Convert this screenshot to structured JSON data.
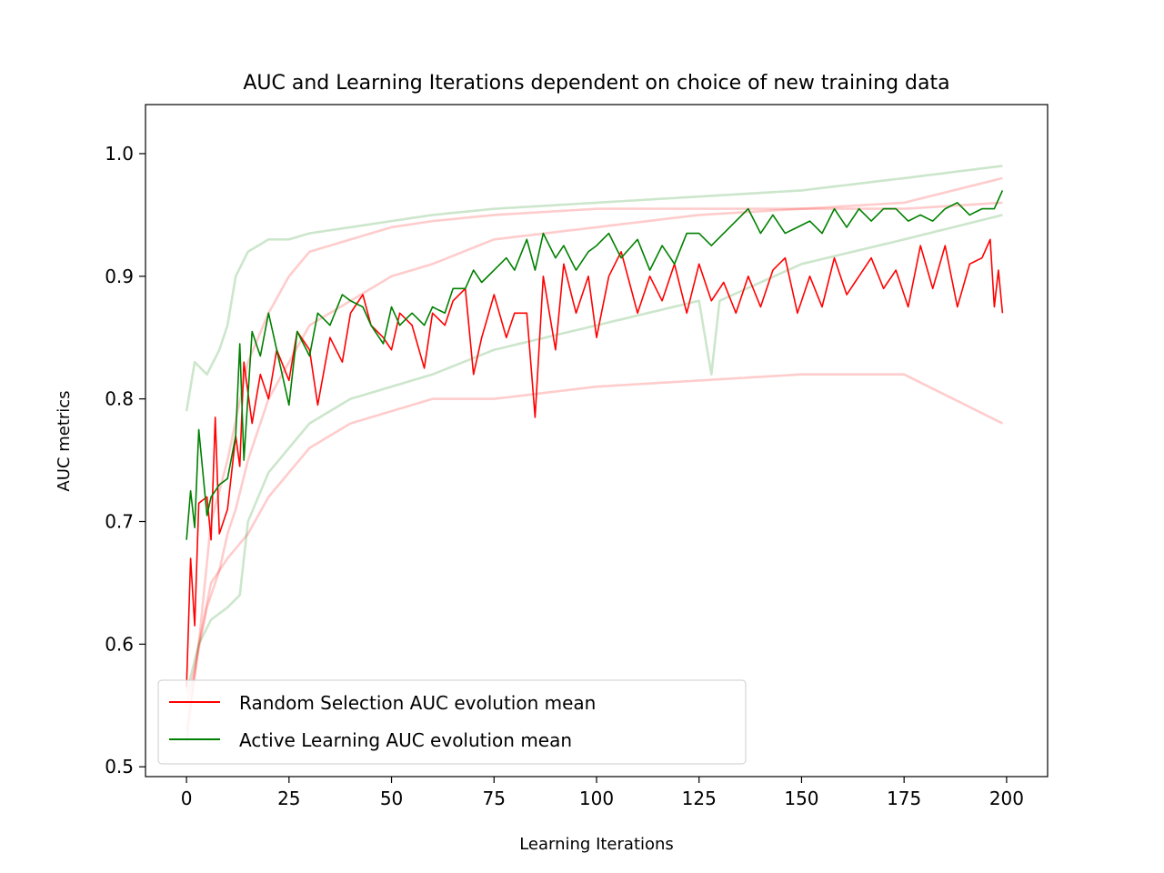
{
  "chart_data": {
    "type": "line",
    "title": "AUC and Learning Iterations dependent on choice of new training data",
    "xlabel": "Learning Iterations",
    "ylabel": "AUC metrics",
    "xlim": [
      -10,
      210
    ],
    "ylim": [
      0.492,
      1.04
    ],
    "x_ticks": [
      0,
      25,
      50,
      75,
      100,
      125,
      150,
      175,
      200
    ],
    "y_ticks": [
      0.5,
      0.6,
      0.7,
      0.8,
      0.9,
      1.0
    ],
    "x_tick_labels": [
      "0",
      "25",
      "50",
      "75",
      "100",
      "125",
      "150",
      "175",
      "200"
    ],
    "y_tick_labels": [
      "0.5",
      "0.6",
      "0.7",
      "0.8",
      "0.9",
      "1.0"
    ],
    "grid": false,
    "legend_position": "lower-left",
    "x_range": [
      0,
      199
    ],
    "series": [
      {
        "name": "Random Selection AUC evolution mean",
        "color": "#ff0000",
        "role": "mean",
        "keypoints": [
          [
            0,
            0.565
          ],
          [
            1,
            0.67
          ],
          [
            2,
            0.615
          ],
          [
            3,
            0.715
          ],
          [
            5,
            0.72
          ],
          [
            6,
            0.685
          ],
          [
            7,
            0.785
          ],
          [
            8,
            0.69
          ],
          [
            10,
            0.71
          ],
          [
            12,
            0.77
          ],
          [
            13,
            0.745
          ],
          [
            14,
            0.83
          ],
          [
            16,
            0.78
          ],
          [
            18,
            0.82
          ],
          [
            20,
            0.8
          ],
          [
            22,
            0.84
          ],
          [
            25,
            0.815
          ],
          [
            27,
            0.855
          ],
          [
            30,
            0.84
          ],
          [
            32,
            0.795
          ],
          [
            35,
            0.85
          ],
          [
            38,
            0.83
          ],
          [
            40,
            0.87
          ],
          [
            43,
            0.885
          ],
          [
            45,
            0.86
          ],
          [
            48,
            0.85
          ],
          [
            50,
            0.84
          ],
          [
            52,
            0.87
          ],
          [
            55,
            0.86
          ],
          [
            58,
            0.825
          ],
          [
            60,
            0.87
          ],
          [
            63,
            0.86
          ],
          [
            65,
            0.88
          ],
          [
            68,
            0.89
          ],
          [
            70,
            0.82
          ],
          [
            72,
            0.85
          ],
          [
            75,
            0.885
          ],
          [
            78,
            0.85
          ],
          [
            80,
            0.87
          ],
          [
            83,
            0.87
          ],
          [
            85,
            0.785
          ],
          [
            87,
            0.9
          ],
          [
            90,
            0.84
          ],
          [
            92,
            0.91
          ],
          [
            95,
            0.87
          ],
          [
            98,
            0.9
          ],
          [
            100,
            0.85
          ],
          [
            103,
            0.9
          ],
          [
            106,
            0.92
          ],
          [
            110,
            0.87
          ],
          [
            113,
            0.9
          ],
          [
            116,
            0.88
          ],
          [
            119,
            0.91
          ],
          [
            122,
            0.87
          ],
          [
            125,
            0.91
          ],
          [
            128,
            0.88
          ],
          [
            131,
            0.895
          ],
          [
            134,
            0.87
          ],
          [
            137,
            0.9
          ],
          [
            140,
            0.875
          ],
          [
            143,
            0.905
          ],
          [
            146,
            0.915
          ],
          [
            149,
            0.87
          ],
          [
            152,
            0.9
          ],
          [
            155,
            0.875
          ],
          [
            158,
            0.915
          ],
          [
            161,
            0.885
          ],
          [
            164,
            0.9
          ],
          [
            167,
            0.915
          ],
          [
            170,
            0.89
          ],
          [
            173,
            0.905
          ],
          [
            176,
            0.875
          ],
          [
            179,
            0.925
          ],
          [
            182,
            0.89
          ],
          [
            185,
            0.925
          ],
          [
            188,
            0.875
          ],
          [
            191,
            0.91
          ],
          [
            194,
            0.915
          ],
          [
            196,
            0.93
          ],
          [
            197,
            0.875
          ],
          [
            198,
            0.905
          ],
          [
            199,
            0.87
          ]
        ]
      },
      {
        "name": "Active Learning AUC evolution mean",
        "color": "#008000",
        "role": "mean",
        "keypoints": [
          [
            0,
            0.685
          ],
          [
            1,
            0.725
          ],
          [
            2,
            0.695
          ],
          [
            3,
            0.775
          ],
          [
            5,
            0.705
          ],
          [
            6,
            0.72
          ],
          [
            8,
            0.73
          ],
          [
            10,
            0.735
          ],
          [
            12,
            0.77
          ],
          [
            13,
            0.845
          ],
          [
            14,
            0.75
          ],
          [
            16,
            0.855
          ],
          [
            18,
            0.835
          ],
          [
            20,
            0.87
          ],
          [
            22,
            0.84
          ],
          [
            25,
            0.795
          ],
          [
            27,
            0.855
          ],
          [
            30,
            0.835
          ],
          [
            32,
            0.87
          ],
          [
            35,
            0.86
          ],
          [
            38,
            0.885
          ],
          [
            40,
            0.88
          ],
          [
            43,
            0.875
          ],
          [
            45,
            0.86
          ],
          [
            48,
            0.845
          ],
          [
            50,
            0.875
          ],
          [
            52,
            0.86
          ],
          [
            55,
            0.87
          ],
          [
            58,
            0.86
          ],
          [
            60,
            0.875
          ],
          [
            63,
            0.87
          ],
          [
            65,
            0.89
          ],
          [
            68,
            0.89
          ],
          [
            70,
            0.905
          ],
          [
            72,
            0.895
          ],
          [
            75,
            0.905
          ],
          [
            78,
            0.915
          ],
          [
            80,
            0.905
          ],
          [
            83,
            0.93
          ],
          [
            85,
            0.905
          ],
          [
            87,
            0.935
          ],
          [
            90,
            0.915
          ],
          [
            92,
            0.925
          ],
          [
            95,
            0.905
          ],
          [
            98,
            0.92
          ],
          [
            100,
            0.925
          ],
          [
            103,
            0.935
          ],
          [
            106,
            0.915
          ],
          [
            110,
            0.93
          ],
          [
            113,
            0.905
          ],
          [
            116,
            0.925
          ],
          [
            119,
            0.91
          ],
          [
            122,
            0.935
          ],
          [
            125,
            0.935
          ],
          [
            128,
            0.925
          ],
          [
            131,
            0.935
          ],
          [
            134,
            0.945
          ],
          [
            137,
            0.955
          ],
          [
            140,
            0.935
          ],
          [
            143,
            0.95
          ],
          [
            146,
            0.935
          ],
          [
            149,
            0.94
          ],
          [
            152,
            0.945
          ],
          [
            155,
            0.935
          ],
          [
            158,
            0.955
          ],
          [
            161,
            0.94
          ],
          [
            164,
            0.955
          ],
          [
            167,
            0.945
          ],
          [
            170,
            0.955
          ],
          [
            173,
            0.955
          ],
          [
            176,
            0.945
          ],
          [
            179,
            0.95
          ],
          [
            182,
            0.945
          ],
          [
            185,
            0.955
          ],
          [
            188,
            0.96
          ],
          [
            191,
            0.95
          ],
          [
            194,
            0.955
          ],
          [
            197,
            0.955
          ],
          [
            199,
            0.97
          ]
        ]
      },
      {
        "color": "#ff0000",
        "role": "run",
        "keypoints": [
          [
            0,
            0.55
          ],
          [
            2,
            0.58
          ],
          [
            5,
            0.63
          ],
          [
            8,
            0.66
          ],
          [
            10,
            0.69
          ],
          [
            12,
            0.71
          ],
          [
            15,
            0.75
          ],
          [
            20,
            0.8
          ],
          [
            25,
            0.83
          ],
          [
            30,
            0.86
          ],
          [
            40,
            0.88
          ],
          [
            50,
            0.9
          ],
          [
            60,
            0.91
          ],
          [
            75,
            0.93
          ],
          [
            100,
            0.94
          ],
          [
            125,
            0.95
          ],
          [
            150,
            0.955
          ],
          [
            175,
            0.96
          ],
          [
            199,
            0.98
          ]
        ]
      },
      {
        "color": "#ff0000",
        "role": "run",
        "keypoints": [
          [
            0,
            0.53
          ],
          [
            3,
            0.6
          ],
          [
            6,
            0.7
          ],
          [
            10,
            0.75
          ],
          [
            15,
            0.83
          ],
          [
            20,
            0.87
          ],
          [
            25,
            0.9
          ],
          [
            30,
            0.92
          ],
          [
            40,
            0.93
          ],
          [
            50,
            0.94
          ],
          [
            60,
            0.945
          ],
          [
            75,
            0.95
          ],
          [
            100,
            0.955
          ],
          [
            125,
            0.955
          ],
          [
            150,
            0.955
          ],
          [
            175,
            0.955
          ],
          [
            199,
            0.96
          ]
        ]
      },
      {
        "color": "#ff0000",
        "role": "run",
        "keypoints": [
          [
            0,
            0.52
          ],
          [
            3,
            0.6
          ],
          [
            6,
            0.65
          ],
          [
            10,
            0.67
          ],
          [
            15,
            0.69
          ],
          [
            20,
            0.72
          ],
          [
            25,
            0.74
          ],
          [
            30,
            0.76
          ],
          [
            40,
            0.78
          ],
          [
            50,
            0.79
          ],
          [
            60,
            0.8
          ],
          [
            75,
            0.8
          ],
          [
            100,
            0.81
          ],
          [
            125,
            0.815
          ],
          [
            150,
            0.82
          ],
          [
            175,
            0.82
          ],
          [
            199,
            0.78
          ]
        ]
      },
      {
        "color": "#008000",
        "role": "run",
        "keypoints": [
          [
            0,
            0.79
          ],
          [
            2,
            0.83
          ],
          [
            5,
            0.82
          ],
          [
            8,
            0.84
          ],
          [
            10,
            0.86
          ],
          [
            12,
            0.9
          ],
          [
            15,
            0.92
          ],
          [
            20,
            0.93
          ],
          [
            25,
            0.93
          ],
          [
            30,
            0.935
          ],
          [
            40,
            0.94
          ],
          [
            50,
            0.945
          ],
          [
            60,
            0.95
          ],
          [
            75,
            0.955
          ],
          [
            100,
            0.96
          ],
          [
            125,
            0.965
          ],
          [
            150,
            0.97
          ],
          [
            175,
            0.98
          ],
          [
            199,
            0.99
          ]
        ]
      },
      {
        "color": "#008000",
        "role": "run",
        "keypoints": [
          [
            0,
            0.56
          ],
          [
            3,
            0.6
          ],
          [
            6,
            0.62
          ],
          [
            10,
            0.63
          ],
          [
            13,
            0.64
          ],
          [
            15,
            0.7
          ],
          [
            20,
            0.74
          ],
          [
            25,
            0.76
          ],
          [
            30,
            0.78
          ],
          [
            40,
            0.8
          ],
          [
            50,
            0.81
          ],
          [
            60,
            0.82
          ],
          [
            75,
            0.84
          ],
          [
            100,
            0.86
          ],
          [
            125,
            0.88
          ],
          [
            128,
            0.82
          ],
          [
            130,
            0.88
          ],
          [
            150,
            0.91
          ],
          [
            175,
            0.93
          ],
          [
            199,
            0.95
          ]
        ]
      }
    ]
  }
}
